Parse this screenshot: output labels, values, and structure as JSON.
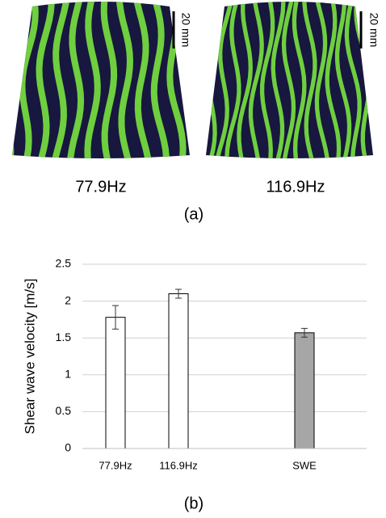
{
  "panel_a": {
    "scale_bars": [
      "20 mm",
      "20 mm"
    ],
    "labels": [
      "77.9Hz",
      "116.9Hz"
    ],
    "caption": "(a)"
  },
  "chart_data": {
    "type": "bar",
    "caption": "(b)",
    "y_label": "Shear wave velocity [m/s]",
    "categories": [
      "77.9Hz",
      "116.9Hz",
      null,
      "SWE"
    ],
    "values": [
      1.78,
      2.1,
      null,
      1.57
    ],
    "errors": [
      0.16,
      0.06,
      null,
      0.06
    ],
    "colors": [
      "#ffffff",
      "#ffffff",
      null,
      "#a6a6a6"
    ],
    "ylim": [
      0,
      2.5
    ],
    "yticks": [
      0,
      0.5,
      1,
      1.5,
      2,
      2.5
    ],
    "grid": true
  }
}
